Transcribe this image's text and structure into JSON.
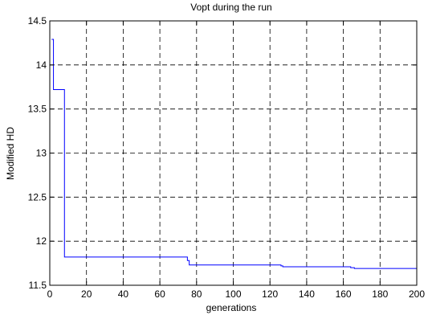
{
  "chart_data": {
    "type": "line",
    "title": "Vopt during the run",
    "xlabel": "generations",
    "ylabel": "Modified HD",
    "xlim": [
      0,
      200
    ],
    "ylim": [
      11.5,
      14.5
    ],
    "xticks": [
      0,
      20,
      40,
      60,
      80,
      100,
      120,
      140,
      160,
      180,
      200
    ],
    "yticks": [
      11.5,
      12,
      12.5,
      13,
      13.5,
      14,
      14.5
    ],
    "xtick_labels": [
      "0",
      "20",
      "40",
      "60",
      "80",
      "100",
      "120",
      "140",
      "160",
      "180",
      "200"
    ],
    "ytick_labels": [
      "11.5",
      "12",
      "12.5",
      "13",
      "13.5",
      "14",
      "14.5"
    ],
    "grid": true,
    "grid_style": "dashed",
    "colors": {
      "line": "#0000ff",
      "grid": "#000000",
      "axes": "#000000"
    },
    "series": [
      {
        "x": [
          1,
          2,
          2,
          7,
          7,
          8,
          8,
          75,
          75,
          76,
          76,
          126,
          126,
          127,
          127,
          164,
          164,
          166,
          166,
          200
        ],
        "y": [
          14.29,
          14.29,
          13.72,
          13.72,
          13.72,
          13.72,
          11.82,
          11.82,
          11.78,
          11.78,
          11.73,
          11.73,
          11.72,
          11.72,
          11.71,
          11.71,
          11.7,
          11.7,
          11.69,
          11.69
        ]
      }
    ]
  }
}
